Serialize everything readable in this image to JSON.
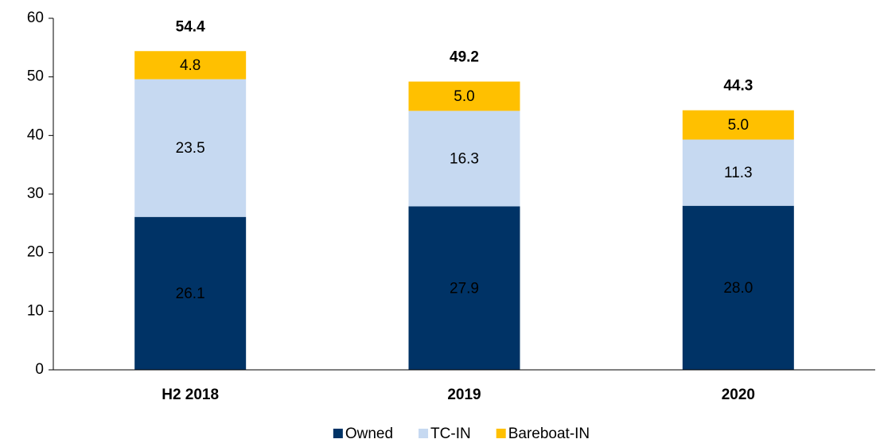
{
  "chart_data": {
    "type": "stacked_bar",
    "categories": [
      "H2 2018",
      "2019",
      "2020"
    ],
    "series": [
      {
        "name": "Owned",
        "color": "#003366",
        "values": [
          26.1,
          27.9,
          28.0
        ],
        "value_labels": [
          "26.1",
          "27.9",
          "28.0"
        ],
        "label_color": "#ffffff"
      },
      {
        "name": "TC-IN",
        "color": "#c6d9f1",
        "values": [
          23.5,
          16.3,
          11.3
        ],
        "value_labels": [
          "23.5",
          "16.3",
          "11.3"
        ],
        "label_color": "#000000"
      },
      {
        "name": "Bareboat-IN",
        "color": "#ffc000",
        "values": [
          4.8,
          5.0,
          5.0
        ],
        "value_labels": [
          "4.8",
          "5.0",
          "5.0"
        ],
        "label_color": "#000000"
      }
    ],
    "totals": [
      54.4,
      49.2,
      44.3
    ],
    "ylim": [
      0,
      60
    ],
    "yticks": [
      0,
      10,
      20,
      30,
      40,
      50,
      60
    ],
    "grid": false,
    "legend": "bottom"
  }
}
